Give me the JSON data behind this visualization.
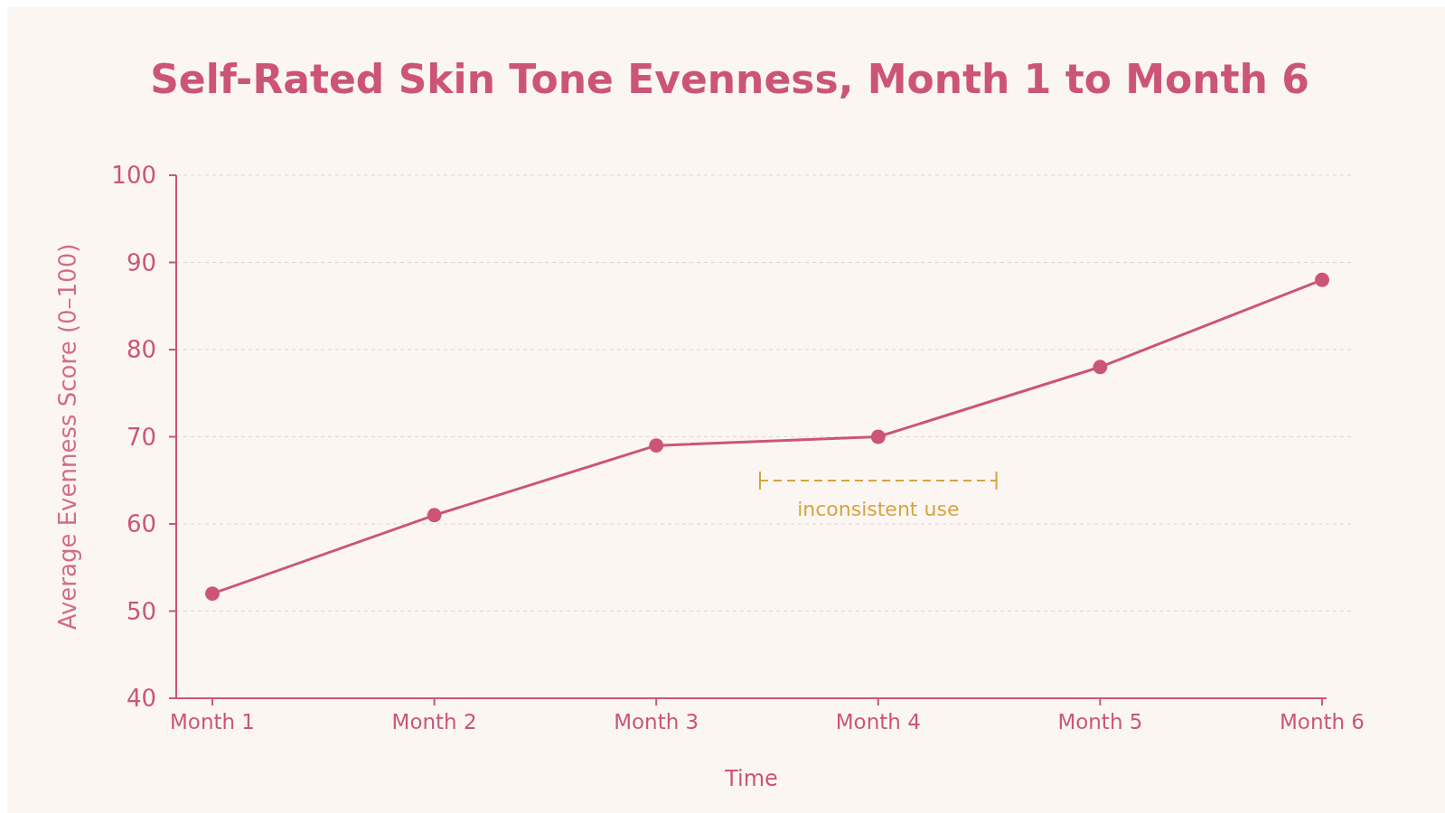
{
  "chart_data": {
    "type": "line",
    "title": "Self-Rated Skin Tone Evenness, Month 1 to Month 6",
    "xlabel": "Time",
    "ylabel": "Average Evenness Score (0–100)",
    "categories": [
      "Month 1",
      "Month 2",
      "Month 3",
      "Month 4",
      "Month 5",
      "Month 6"
    ],
    "series": [
      {
        "color": "#cc5577",
        "values": [
          52,
          61,
          69,
          70,
          78,
          88
        ]
      }
    ],
    "ylim": [
      40,
      100
    ],
    "yticks": [
      40,
      50,
      60,
      70,
      80,
      90,
      100
    ],
    "grid": "y",
    "marker": "circle",
    "line_style": "solid",
    "annotations": [
      "inconsistent use"
    ]
  }
}
